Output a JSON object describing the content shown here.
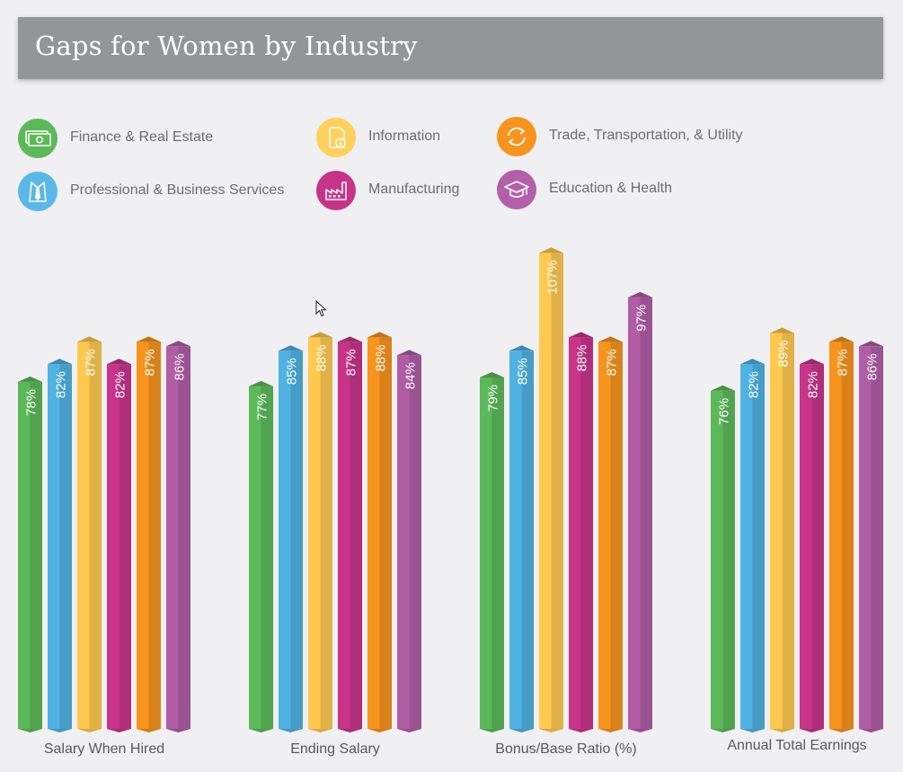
{
  "title": "Gaps for Women by Industry",
  "legend": [
    {
      "label": "Finance & Real Estate",
      "color": "#5cb95a",
      "icon": "money-icon"
    },
    {
      "label": "Information",
      "color": "#ffd05b",
      "icon": "document-info-icon"
    },
    {
      "label": "Trade, Transportation, & Utility",
      "color": "#f7941d",
      "icon": "exchange-arrows-icon"
    },
    {
      "label": "Professional & Business Services",
      "color": "#5ab8e8",
      "icon": "shirt-tie-icon"
    },
    {
      "label": "Manufacturing",
      "color": "#c8338a",
      "icon": "factory-icon"
    },
    {
      "label": "Education & Health",
      "color": "#b45fa9",
      "icon": "graduation-cap-icon"
    }
  ],
  "chart_data": {
    "type": "bar",
    "categories": [
      "Salary When Hired",
      "Ending Salary",
      "Bonus/Base Ratio (%)",
      "Annual Total Earnings"
    ],
    "series": [
      {
        "name": "Finance & Real Estate",
        "color": "#5cb95a",
        "values": [
          78,
          77,
          79,
          76
        ],
        "labels": [
          "78%",
          "77%",
          "79%",
          "76%"
        ]
      },
      {
        "name": "Professional & Business Services",
        "color": "#4fb2e3",
        "values": [
          82,
          85,
          85,
          82
        ],
        "labels": [
          "82%",
          "85%",
          "85%",
          "82%"
        ]
      },
      {
        "name": "Information",
        "color": "#ffc94f",
        "values": [
          87,
          88,
          107,
          89
        ],
        "labels": [
          "87%",
          "88%",
          "107%",
          "89%"
        ]
      },
      {
        "name": "Manufacturing",
        "color": "#c7348a",
        "values": [
          82,
          87,
          88,
          82
        ],
        "labels": [
          "82%",
          "87%",
          "88%",
          "82%"
        ]
      },
      {
        "name": "Trade, Transportation, & Utility",
        "color": "#f7941d",
        "values": [
          87,
          88,
          87,
          87
        ],
        "labels": [
          "87%",
          "88%",
          "87%",
          "87%"
        ]
      },
      {
        "name": "Education & Health",
        "color": "#b05da6",
        "values": [
          86,
          84,
          97,
          86
        ],
        "labels": [
          "86%",
          "84%",
          "97%",
          "86%"
        ]
      }
    ],
    "ylim": [
      0,
      107
    ],
    "grid": false,
    "legend_position": "top"
  }
}
